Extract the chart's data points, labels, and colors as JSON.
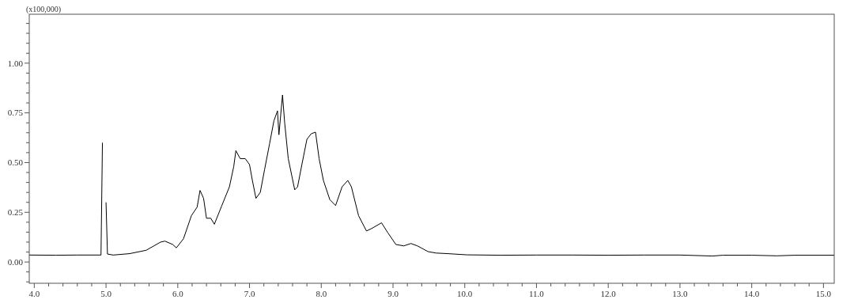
{
  "chart_data": {
    "type": "line",
    "ylabel": "(x100,000)",
    "xlim": [
      3.93,
      15.15
    ],
    "ylim": [
      -0.107,
      1.246
    ],
    "xticks": [
      {
        "value": 4.0,
        "label": "4.0"
      },
      {
        "value": 4.2,
        "label": null
      },
      {
        "value": 4.4,
        "label": null
      },
      {
        "value": 4.6,
        "label": null
      },
      {
        "value": 4.8,
        "label": null
      },
      {
        "value": 5.0,
        "label": "5.0"
      },
      {
        "value": 5.2,
        "label": null
      },
      {
        "value": 5.4,
        "label": null
      },
      {
        "value": 5.6,
        "label": null
      },
      {
        "value": 5.8,
        "label": null
      },
      {
        "value": 6.0,
        "label": "6.0"
      },
      {
        "value": 6.2,
        "label": null
      },
      {
        "value": 6.4,
        "label": null
      },
      {
        "value": 6.6,
        "label": null
      },
      {
        "value": 6.8,
        "label": null
      },
      {
        "value": 7.0,
        "label": "7.0"
      },
      {
        "value": 7.2,
        "label": null
      },
      {
        "value": 7.4,
        "label": null
      },
      {
        "value": 7.6,
        "label": null
      },
      {
        "value": 7.8,
        "label": null
      },
      {
        "value": 8.0,
        "label": "8.0"
      },
      {
        "value": 8.2,
        "label": null
      },
      {
        "value": 8.4,
        "label": null
      },
      {
        "value": 8.6,
        "label": null
      },
      {
        "value": 8.8,
        "label": null
      },
      {
        "value": 9.0,
        "label": "9.0"
      },
      {
        "value": 9.2,
        "label": null
      },
      {
        "value": 9.4,
        "label": null
      },
      {
        "value": 9.6,
        "label": null
      },
      {
        "value": 9.8,
        "label": null
      },
      {
        "value": 10.0,
        "label": "10.0"
      },
      {
        "value": 10.2,
        "label": null
      },
      {
        "value": 10.4,
        "label": null
      },
      {
        "value": 10.6,
        "label": null
      },
      {
        "value": 10.8,
        "label": null
      },
      {
        "value": 11.0,
        "label": "11.0"
      },
      {
        "value": 11.2,
        "label": null
      },
      {
        "value": 11.4,
        "label": null
      },
      {
        "value": 11.6,
        "label": null
      },
      {
        "value": 11.8,
        "label": null
      },
      {
        "value": 12.0,
        "label": "12.0"
      },
      {
        "value": 12.2,
        "label": null
      },
      {
        "value": 12.4,
        "label": null
      },
      {
        "value": 12.6,
        "label": null
      },
      {
        "value": 12.8,
        "label": null
      },
      {
        "value": 13.0,
        "label": "13.0"
      },
      {
        "value": 13.2,
        "label": null
      },
      {
        "value": 13.4,
        "label": null
      },
      {
        "value": 13.6,
        "label": null
      },
      {
        "value": 13.8,
        "label": null
      },
      {
        "value": 14.0,
        "label": "14.0"
      },
      {
        "value": 14.2,
        "label": null
      },
      {
        "value": 14.4,
        "label": null
      },
      {
        "value": 14.6,
        "label": null
      },
      {
        "value": 14.8,
        "label": null
      },
      {
        "value": 15.0,
        "label": "15.0"
      }
    ],
    "yticks": [
      {
        "value": -0.1,
        "label": null
      },
      {
        "value": -0.05,
        "label": null
      },
      {
        "value": 0,
        "label": "0.00"
      },
      {
        "value": 0.05,
        "label": null
      },
      {
        "value": 0.1,
        "label": null
      },
      {
        "value": 0.15,
        "label": null
      },
      {
        "value": 0.2,
        "label": null
      },
      {
        "value": 0.25,
        "label": "0.25"
      },
      {
        "value": 0.3,
        "label": null
      },
      {
        "value": 0.35,
        "label": null
      },
      {
        "value": 0.4,
        "label": null
      },
      {
        "value": 0.45,
        "label": null
      },
      {
        "value": 0.5,
        "label": "0.50"
      },
      {
        "value": 0.55,
        "label": null
      },
      {
        "value": 0.6,
        "label": null
      },
      {
        "value": 0.65,
        "label": null
      },
      {
        "value": 0.7,
        "label": null
      },
      {
        "value": 0.75,
        "label": "0.75"
      },
      {
        "value": 0.8,
        "label": null
      },
      {
        "value": 0.85,
        "label": null
      },
      {
        "value": 0.9,
        "label": null
      },
      {
        "value": 0.95,
        "label": null
      },
      {
        "value": 1.0,
        "label": "1.00"
      },
      {
        "value": 1.05,
        "label": null
      },
      {
        "value": 1.1,
        "label": null
      },
      {
        "value": 1.15,
        "label": null
      },
      {
        "value": 1.2,
        "label": null
      }
    ],
    "grid": false,
    "marker": "none",
    "line_style": "solid",
    "series": [
      {
        "color": "#000000",
        "x": [
          3.93,
          4.3,
          4.6,
          4.93,
          4.95,
          4.96,
          4.99,
          5.0,
          5.02,
          5.1,
          5.33,
          5.56,
          5.76,
          5.82,
          5.93,
          5.98,
          6.08,
          6.19,
          6.27,
          6.31,
          6.36,
          6.4,
          6.46,
          6.51,
          6.61,
          6.72,
          6.78,
          6.81,
          6.87,
          6.94,
          7.0,
          7.04,
          7.09,
          7.15,
          7.21,
          7.28,
          7.34,
          7.39,
          7.41,
          7.46,
          7.49,
          7.54,
          7.63,
          7.67,
          7.73,
          7.8,
          7.86,
          7.92,
          7.97,
          8.03,
          8.12,
          8.2,
          8.29,
          8.37,
          8.42,
          8.52,
          8.63,
          8.7,
          8.84,
          8.93,
          9.04,
          9.15,
          9.25,
          9.34,
          9.49,
          9.6,
          9.76,
          10.03,
          10.5,
          11.0,
          11.5,
          12.0,
          12.5,
          13.0,
          13.45,
          13.6,
          14.0,
          14.35,
          14.6,
          15.15
        ],
        "values": [
          0.035,
          0.034,
          0.035,
          0.035,
          0.6,
          null,
          null,
          0.3,
          0.04,
          0.035,
          0.042,
          0.059,
          0.1,
          0.105,
          0.088,
          0.071,
          0.117,
          0.233,
          0.276,
          0.36,
          0.32,
          0.22,
          0.22,
          0.19,
          0.28,
          0.378,
          0.48,
          0.56,
          0.52,
          0.52,
          0.49,
          0.41,
          0.32,
          0.35,
          0.465,
          0.595,
          0.71,
          0.76,
          0.64,
          0.84,
          0.7,
          0.52,
          0.363,
          0.378,
          0.49,
          0.617,
          0.645,
          0.653,
          0.52,
          0.41,
          0.313,
          0.284,
          0.378,
          0.41,
          0.378,
          0.233,
          0.156,
          0.168,
          0.197,
          0.146,
          0.088,
          0.081,
          0.093,
          0.081,
          0.052,
          0.045,
          0.042,
          0.036,
          0.034,
          0.035,
          0.035,
          0.034,
          0.035,
          0.035,
          0.03,
          0.034,
          0.034,
          0.031,
          0.034,
          0.034
        ]
      }
    ]
  }
}
